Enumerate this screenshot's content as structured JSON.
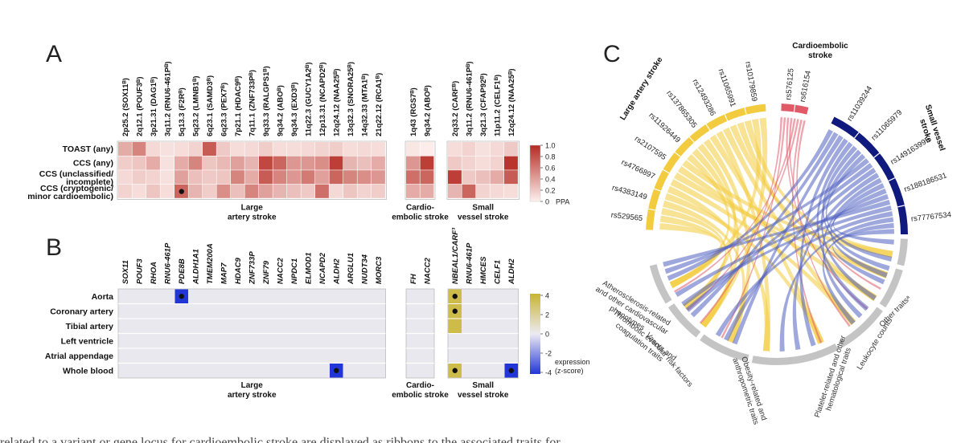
{
  "panels": {
    "a": "A",
    "b": "B",
    "c": "C"
  },
  "chart_data": [
    {
      "type": "heatmap",
      "panel": "A",
      "rows": [
        "TOAST (any)",
        "CCS (any)",
        "CCS (unclassified/",
        "incomplete)",
        "CCS (cryptogenic/",
        "minor cardioembolic)"
      ],
      "row_groups": [
        [
          "TOAST (any)"
        ],
        [
          "CCS (any)"
        ],
        [
          "CCS (unclassified/",
          "incomplete)"
        ],
        [
          "CCS (cryptogenic/",
          "minor cardioembolic)"
        ]
      ],
      "groups": [
        {
          "name": [
            "Large",
            "artery stroke"
          ],
          "columns": [
            "2p25.2 (SOX11ᴮ)",
            "2q12.1 (POUF3ᴮ)",
            "3p21.31 (DAG1ᴮ)",
            "3q11.2 (RNU6-461Pᴮ)",
            "5q13.3 (F2Rᴮ)",
            "5q23.2 (LMNB1ᴮ)",
            "6q23.1 (SAMD3ᴮ)",
            "6q23.3 (PEX7ᴮ)",
            "7p21.1 (HDAC9ᴮ)",
            "7q11.1 (ZNF733Pᴮ)",
            "9q33.3 (RALGPS1ᴮ)",
            "9q34.2 (ABOᴮ)",
            "9q34.3 (EXD3ᴮ)",
            "11q22.3 (GUCY1A2ᴮ)",
            "12p13.31 (NCAPD2ᴮ)",
            "12q24.12 (NAA25ᴮ)",
            "13q32.3 (SNORA25ᴮ)",
            "14q32.33 (MTA1ᴮ)",
            "21q22.12 (RCA1ᴮ)"
          ]
        },
        {
          "name": [
            "Cardio-",
            "embolic stroke"
          ],
          "columns": [
            "1q43 (RGS7ᴮ)",
            "9q34.2 (ABOᴮ)"
          ]
        },
        {
          "name": [
            "Small",
            "vessel stroke"
          ],
          "columns": [
            "2q33.2 (CARFᴮ)",
            "3q11.2 (RNU6-461Pᴮ)",
            "3q21.3 (CFAP92ᴮ)",
            "11p11.2 (CELF1ᴮ)",
            "12q24.12 (NAA25ᴮ)"
          ]
        }
      ],
      "values": [
        [
          0.35,
          0.55,
          0.12,
          0.08,
          0.1,
          0.15,
          0.75,
          0.2,
          0.1,
          0.12,
          0.18,
          0.1,
          0.1,
          0.12,
          0.15,
          0.18,
          0.1,
          0.12,
          0.1,
          0.05,
          0.02,
          0.1,
          0.15,
          0.08,
          0.12,
          0.2
        ],
        [
          0.18,
          0.22,
          0.35,
          0.08,
          0.35,
          0.55,
          0.22,
          0.28,
          0.4,
          0.3,
          0.85,
          0.7,
          0.45,
          0.45,
          0.5,
          0.9,
          0.3,
          0.25,
          0.35,
          0.45,
          0.9,
          0.2,
          0.15,
          0.1,
          0.15,
          0.95
        ],
        [
          0.12,
          0.18,
          0.15,
          0.08,
          0.4,
          0.25,
          0.2,
          0.22,
          0.55,
          0.35,
          0.75,
          0.55,
          0.45,
          0.6,
          0.4,
          0.7,
          0.55,
          0.5,
          0.45,
          0.65,
          0.7,
          0.9,
          0.2,
          0.25,
          0.35,
          0.75
        ],
        [
          0.15,
          0.1,
          0.22,
          0.1,
          0.7,
          0.3,
          0.18,
          0.5,
          0.25,
          0.55,
          0.4,
          0.3,
          0.25,
          0.2,
          0.65,
          0.12,
          0.22,
          0.15,
          0.18,
          0.35,
          0.35,
          0.3,
          0.7,
          0.15,
          0.12,
          0.1
        ]
      ],
      "dots": [
        [
          3,
          4
        ]
      ],
      "legend": {
        "ticks": [
          "1.0",
          "0.8",
          "0.6",
          "0.4",
          "0.2",
          "0"
        ],
        "label": "PPA"
      },
      "colors": {
        "low": "#fdf1ee",
        "high": "#b52a22"
      }
    },
    {
      "type": "heatmap",
      "panel": "B",
      "rows": [
        "Aorta",
        "Coronary artery",
        "Tibial artery",
        "Left ventricle",
        "Atrial appendage",
        "Whole blood"
      ],
      "groups": [
        {
          "name": [
            "Large",
            "artery stroke"
          ],
          "columns": [
            "SOX11",
            "POUF3",
            "RHOA",
            "RNU6-461P",
            "PDE8B",
            "ALDH1A1",
            "TMEM200A",
            "MAP7",
            "HDAC9",
            "ZNF733P",
            "ZNF79",
            "NACC2",
            "NPDC1",
            "ELMOD1",
            "NCAPD2",
            "ALDH2",
            "ARGLU1",
            "NUDT34",
            "MORC3"
          ]
        },
        {
          "name": [
            "Cardio-",
            "embolic stroke"
          ],
          "columns": [
            "FH",
            "NACC2"
          ]
        },
        {
          "name": [
            "Small",
            "vessel stroke"
          ],
          "columns": [
            "NBEAL1/CARF³",
            "RNU6-461P",
            "HMCES",
            "CELF1",
            "ALDH2"
          ]
        }
      ],
      "cells": [
        {
          "row": 0,
          "col": 4,
          "z": -4.2,
          "dot": true
        },
        {
          "row": 5,
          "col": 15,
          "z": -4.2,
          "dot": true
        },
        {
          "row": 0,
          "col": 21,
          "z": 3.5,
          "dot": true
        },
        {
          "row": 1,
          "col": 21,
          "z": 3.5,
          "dot": true
        },
        {
          "row": 2,
          "col": 21,
          "z": 3.5,
          "dot": false
        },
        {
          "row": 5,
          "col": 21,
          "z": 3.5,
          "dot": true
        },
        {
          "row": 5,
          "col": 25,
          "z": -4.2,
          "dot": true
        }
      ],
      "legend": {
        "ticks": [
          "4",
          "2",
          "0",
          "-2",
          "-4"
        ],
        "label": [
          "expression",
          "(z-score)"
        ]
      },
      "colors": {
        "high": "#c8b432",
        "mid": "#eceaf2",
        "low": "#2236d8",
        "empty": "#e9e8ee"
      }
    },
    {
      "type": "chord",
      "panel": "C",
      "groups": [
        {
          "name": "Large artery stroke",
          "color": "#f2cc3e",
          "snps": [
            "rs529565",
            "rs4383149",
            "rs4766897",
            "rs2107595",
            "rs11926449",
            "rs137865305",
            "rs12493286",
            "rs11065991",
            "rs10179859"
          ]
        },
        {
          "name": [
            "Cardioembolic",
            "stroke"
          ],
          "color": "#e05a68",
          "snps": [
            "rs576125",
            "rs616154"
          ]
        },
        {
          "name": [
            "Small vessel",
            "stroke"
          ],
          "color": "#101a7e",
          "snps": [
            "rs11039244",
            "rs11065979",
            "rs149163995",
            "rs188186531",
            "rs77767534"
          ]
        }
      ],
      "traits": [
        {
          "name": [
            "Atherosclerosis-related",
            "and other cardiovascular",
            "phenotypes"
          ]
        },
        {
          "name": [
            "Thrombotic events and",
            "coagulation traits"
          ]
        },
        {
          "name": [
            "Vascular risk factors"
          ]
        },
        {
          "name": [
            "Obesity-related and",
            "anthropometric traits"
          ]
        },
        {
          "name": [
            "Platelet-related and other",
            "hematological traits"
          ]
        },
        {
          "name": [
            "Leukocyte counts"
          ]
        },
        {
          "name": [
            "Other traitsᵃ"
          ]
        }
      ],
      "trait_color": "#c4c4c4"
    }
  ],
  "caption": "related to a variant or gene locus for cardioembolic stroke are displayed as ribbons to the associated traits for"
}
